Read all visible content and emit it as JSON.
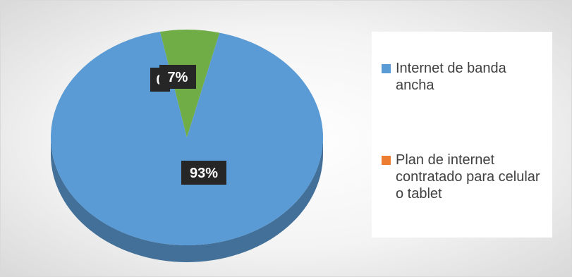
{
  "chart_data": {
    "type": "pie",
    "title": "",
    "style": "3d",
    "series": [
      {
        "values": [
          93,
          7,
          0
        ],
        "data_labels": [
          "93%",
          "7%",
          "0"
        ]
      }
    ],
    "categories": [
      "Internet de banda ancha",
      "Plan de internet contratado para celular o tablet",
      ""
    ],
    "legend_position": "right",
    "colors": {
      "Internet de banda ancha": "#5b9bd5",
      "Plan de internet contratado para celular o tablet": "#ed7d31",
      "third_slice": "#70ad47"
    }
  },
  "legend": {
    "items": [
      {
        "label": "Internet de banda ancha",
        "color": "#5b9bd5"
      },
      {
        "label": "Plan de internet contratado para celular o tablet",
        "color": "#ed7d31"
      }
    ]
  }
}
